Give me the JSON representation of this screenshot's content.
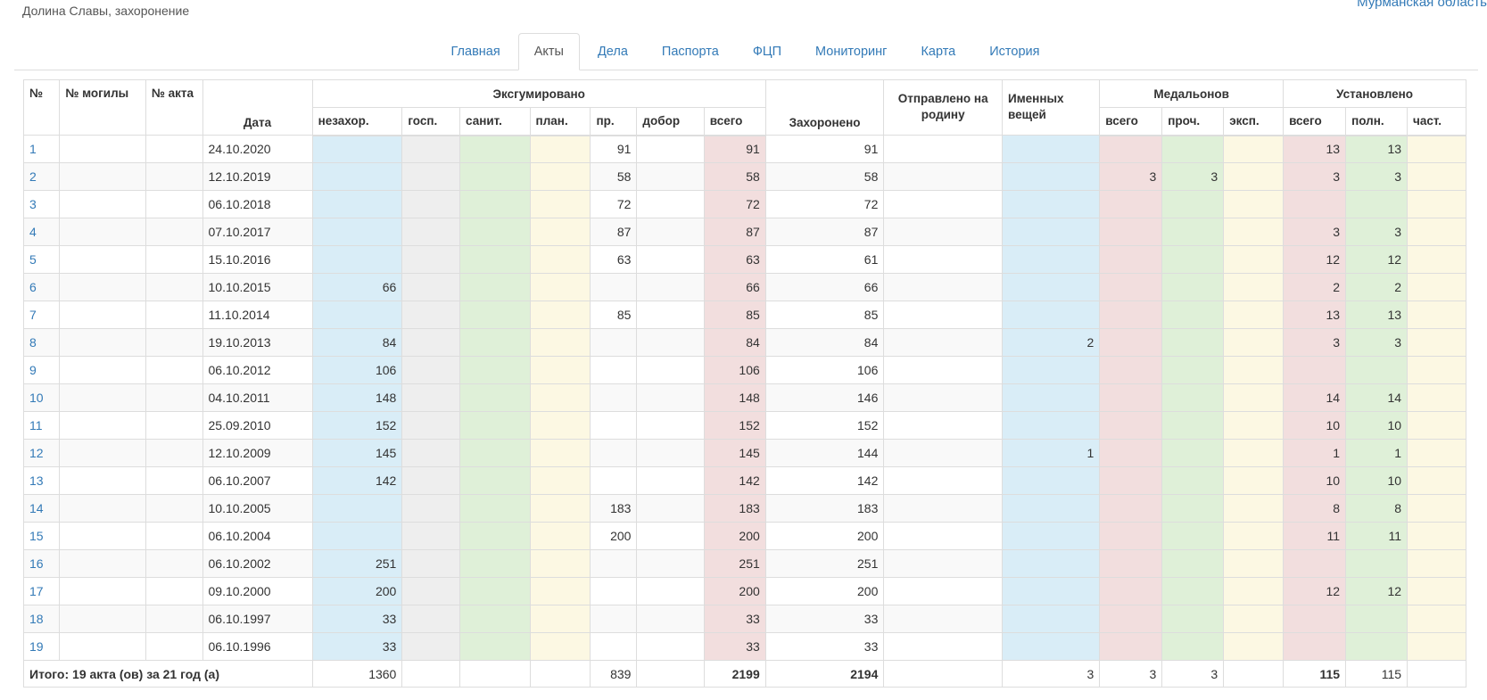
{
  "header": {
    "subtitle": "Долина Славы, захоронение",
    "region": "Мурманская область"
  },
  "tabs": [
    {
      "label": "Главная",
      "active": false
    },
    {
      "label": "Акты",
      "active": true
    },
    {
      "label": "Дела",
      "active": false
    },
    {
      "label": "Паспорта",
      "active": false
    },
    {
      "label": "ФЦП",
      "active": false
    },
    {
      "label": "Мониторинг",
      "active": false
    },
    {
      "label": "Карта",
      "active": false
    },
    {
      "label": "История",
      "active": false
    }
  ],
  "table": {
    "headers": {
      "num": "№",
      "grave_no": "№ могилы",
      "act_no": "№ акта",
      "date": "Дата",
      "exhumed": "Эксгумировано",
      "exhumed_cols": [
        "незахор.",
        "госп.",
        "санит.",
        "план.",
        "пр.",
        "добор",
        "всего"
      ],
      "buried": "Захоронено",
      "sent_home": "Отправлено на родину",
      "named_items": "Именных вещей",
      "medallions": "Медальонов",
      "medallion_cols": [
        "всего",
        "проч.",
        "эксп."
      ],
      "established": "Установлено",
      "established_cols": [
        "всего",
        "полн.",
        "част."
      ]
    },
    "rows": [
      {
        "num": "1",
        "grave": "",
        "act": "",
        "date": "24.10.2020",
        "nezahor": "",
        "gosp": "",
        "sanit": "",
        "plan": "",
        "pr": "91",
        "dobor": "",
        "vsego": "91",
        "buried": "91",
        "sent": "",
        "named": "",
        "med_total": "",
        "med_other": "",
        "med_exp": "",
        "est_total": "13",
        "est_full": "13",
        "est_part": ""
      },
      {
        "num": "2",
        "grave": "",
        "act": "",
        "date": "12.10.2019",
        "nezahor": "",
        "gosp": "",
        "sanit": "",
        "plan": "",
        "pr": "58",
        "dobor": "",
        "vsego": "58",
        "buried": "58",
        "sent": "",
        "named": "",
        "med_total": "3",
        "med_other": "3",
        "med_exp": "",
        "est_total": "3",
        "est_full": "3",
        "est_part": ""
      },
      {
        "num": "3",
        "grave": "",
        "act": "",
        "date": "06.10.2018",
        "nezahor": "",
        "gosp": "",
        "sanit": "",
        "plan": "",
        "pr": "72",
        "dobor": "",
        "vsego": "72",
        "buried": "72",
        "sent": "",
        "named": "",
        "med_total": "",
        "med_other": "",
        "med_exp": "",
        "est_total": "",
        "est_full": "",
        "est_part": ""
      },
      {
        "num": "4",
        "grave": "",
        "act": "",
        "date": "07.10.2017",
        "nezahor": "",
        "gosp": "",
        "sanit": "",
        "plan": "",
        "pr": "87",
        "dobor": "",
        "vsego": "87",
        "buried": "87",
        "sent": "",
        "named": "",
        "med_total": "",
        "med_other": "",
        "med_exp": "",
        "est_total": "3",
        "est_full": "3",
        "est_part": ""
      },
      {
        "num": "5",
        "grave": "",
        "act": "",
        "date": "15.10.2016",
        "nezahor": "",
        "gosp": "",
        "sanit": "",
        "plan": "",
        "pr": "63",
        "dobor": "",
        "vsego": "63",
        "buried": "61",
        "sent": "",
        "named": "",
        "med_total": "",
        "med_other": "",
        "med_exp": "",
        "est_total": "12",
        "est_full": "12",
        "est_part": ""
      },
      {
        "num": "6",
        "grave": "",
        "act": "",
        "date": "10.10.2015",
        "nezahor": "66",
        "gosp": "",
        "sanit": "",
        "plan": "",
        "pr": "",
        "dobor": "",
        "vsego": "66",
        "buried": "66",
        "sent": "",
        "named": "",
        "med_total": "",
        "med_other": "",
        "med_exp": "",
        "est_total": "2",
        "est_full": "2",
        "est_part": ""
      },
      {
        "num": "7",
        "grave": "",
        "act": "",
        "date": "11.10.2014",
        "nezahor": "",
        "gosp": "",
        "sanit": "",
        "plan": "",
        "pr": "85",
        "dobor": "",
        "vsego": "85",
        "buried": "85",
        "sent": "",
        "named": "",
        "med_total": "",
        "med_other": "",
        "med_exp": "",
        "est_total": "13",
        "est_full": "13",
        "est_part": ""
      },
      {
        "num": "8",
        "grave": "",
        "act": "",
        "date": "19.10.2013",
        "nezahor": "84",
        "gosp": "",
        "sanit": "",
        "plan": "",
        "pr": "",
        "dobor": "",
        "vsego": "84",
        "buried": "84",
        "sent": "",
        "named": "2",
        "med_total": "",
        "med_other": "",
        "med_exp": "",
        "est_total": "3",
        "est_full": "3",
        "est_part": ""
      },
      {
        "num": "9",
        "grave": "",
        "act": "",
        "date": "06.10.2012",
        "nezahor": "106",
        "gosp": "",
        "sanit": "",
        "plan": "",
        "pr": "",
        "dobor": "",
        "vsego": "106",
        "buried": "106",
        "sent": "",
        "named": "",
        "med_total": "",
        "med_other": "",
        "med_exp": "",
        "est_total": "",
        "est_full": "",
        "est_part": ""
      },
      {
        "num": "10",
        "grave": "",
        "act": "",
        "date": "04.10.2011",
        "nezahor": "148",
        "gosp": "",
        "sanit": "",
        "plan": "",
        "pr": "",
        "dobor": "",
        "vsego": "148",
        "buried": "146",
        "sent": "",
        "named": "",
        "med_total": "",
        "med_other": "",
        "med_exp": "",
        "est_total": "14",
        "est_full": "14",
        "est_part": ""
      },
      {
        "num": "11",
        "grave": "",
        "act": "",
        "date": "25.09.2010",
        "nezahor": "152",
        "gosp": "",
        "sanit": "",
        "plan": "",
        "pr": "",
        "dobor": "",
        "vsego": "152",
        "buried": "152",
        "sent": "",
        "named": "",
        "med_total": "",
        "med_other": "",
        "med_exp": "",
        "est_total": "10",
        "est_full": "10",
        "est_part": ""
      },
      {
        "num": "12",
        "grave": "",
        "act": "",
        "date": "12.10.2009",
        "nezahor": "145",
        "gosp": "",
        "sanit": "",
        "plan": "",
        "pr": "",
        "dobor": "",
        "vsego": "145",
        "buried": "144",
        "sent": "",
        "named": "1",
        "med_total": "",
        "med_other": "",
        "med_exp": "",
        "est_total": "1",
        "est_full": "1",
        "est_part": ""
      },
      {
        "num": "13",
        "grave": "",
        "act": "",
        "date": "06.10.2007",
        "nezahor": "142",
        "gosp": "",
        "sanit": "",
        "plan": "",
        "pr": "",
        "dobor": "",
        "vsego": "142",
        "buried": "142",
        "sent": "",
        "named": "",
        "med_total": "",
        "med_other": "",
        "med_exp": "",
        "est_total": "10",
        "est_full": "10",
        "est_part": ""
      },
      {
        "num": "14",
        "grave": "",
        "act": "",
        "date": "10.10.2005",
        "nezahor": "",
        "gosp": "",
        "sanit": "",
        "plan": "",
        "pr": "183",
        "dobor": "",
        "vsego": "183",
        "buried": "183",
        "sent": "",
        "named": "",
        "med_total": "",
        "med_other": "",
        "med_exp": "",
        "est_total": "8",
        "est_full": "8",
        "est_part": ""
      },
      {
        "num": "15",
        "grave": "",
        "act": "",
        "date": "06.10.2004",
        "nezahor": "",
        "gosp": "",
        "sanit": "",
        "plan": "",
        "pr": "200",
        "dobor": "",
        "vsego": "200",
        "buried": "200",
        "sent": "",
        "named": "",
        "med_total": "",
        "med_other": "",
        "med_exp": "",
        "est_total": "11",
        "est_full": "11",
        "est_part": ""
      },
      {
        "num": "16",
        "grave": "",
        "act": "",
        "date": "06.10.2002",
        "nezahor": "251",
        "gosp": "",
        "sanit": "",
        "plan": "",
        "pr": "",
        "dobor": "",
        "vsego": "251",
        "buried": "251",
        "sent": "",
        "named": "",
        "med_total": "",
        "med_other": "",
        "med_exp": "",
        "est_total": "",
        "est_full": "",
        "est_part": ""
      },
      {
        "num": "17",
        "grave": "",
        "act": "",
        "date": "09.10.2000",
        "nezahor": "200",
        "gosp": "",
        "sanit": "",
        "plan": "",
        "pr": "",
        "dobor": "",
        "vsego": "200",
        "buried": "200",
        "sent": "",
        "named": "",
        "med_total": "",
        "med_other": "",
        "med_exp": "",
        "est_total": "12",
        "est_full": "12",
        "est_part": ""
      },
      {
        "num": "18",
        "grave": "",
        "act": "",
        "date": "06.10.1997",
        "nezahor": "33",
        "gosp": "",
        "sanit": "",
        "plan": "",
        "pr": "",
        "dobor": "",
        "vsego": "33",
        "buried": "33",
        "sent": "",
        "named": "",
        "med_total": "",
        "med_other": "",
        "med_exp": "",
        "est_total": "",
        "est_full": "",
        "est_part": ""
      },
      {
        "num": "19",
        "grave": "",
        "act": "",
        "date": "06.10.1996",
        "nezahor": "33",
        "gosp": "",
        "sanit": "",
        "plan": "",
        "pr": "",
        "dobor": "",
        "vsego": "33",
        "buried": "33",
        "sent": "",
        "named": "",
        "med_total": "",
        "med_other": "",
        "med_exp": "",
        "est_total": "",
        "est_full": "",
        "est_part": ""
      }
    ],
    "totals": {
      "label": "Итого: 19 акта (ов) за 21 год (а)",
      "nezahor": "1360",
      "gosp": "",
      "sanit": "",
      "plan": "",
      "pr": "839",
      "dobor": "",
      "vsego": "2199",
      "buried": "2194",
      "sent": "",
      "named": "3",
      "med_total": "3",
      "med_other": "3",
      "med_exp": "",
      "est_total": "115",
      "est_full": "115",
      "est_part": ""
    }
  },
  "colors": {
    "link": "#337ab7",
    "blue_col": "#d9edf7",
    "grey_col": "#eeeeee",
    "green_col": "#dff0d8",
    "yellow_col": "#fcf8e3",
    "pink_col": "#f2dede"
  }
}
